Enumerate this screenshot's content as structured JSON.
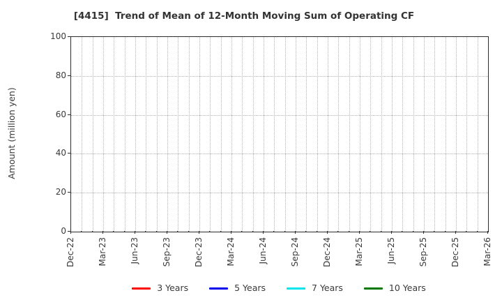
{
  "chart_data": {
    "type": "line",
    "title": "[4415]  Trend of Mean of 12-Month Moving Sum of Operating CF",
    "xlabel": "",
    "ylabel": "Amount (million yen)",
    "ylim": [
      0,
      100
    ],
    "yticks": [
      0,
      20,
      40,
      60,
      80,
      100
    ],
    "x_tick_labels": [
      "Dec-22",
      "Mar-23",
      "Jun-23",
      "Sep-23",
      "Dec-23",
      "Mar-24",
      "Jun-24",
      "Sep-24",
      "Dec-24",
      "Mar-25",
      "Jun-25",
      "Sep-25",
      "Dec-25",
      "Mar-26"
    ],
    "x_minor_ticks_per_major": 3,
    "grid": true,
    "grid_style": "dotted",
    "legend_position": "bottom",
    "series": [
      {
        "name": "3 Years",
        "color": "#ff0000",
        "values": []
      },
      {
        "name": "5 Years",
        "color": "#0000ee",
        "values": []
      },
      {
        "name": "7 Years",
        "color": "#00e5ee",
        "values": []
      },
      {
        "name": "10 Years",
        "color": "#007700",
        "values": []
      }
    ]
  }
}
